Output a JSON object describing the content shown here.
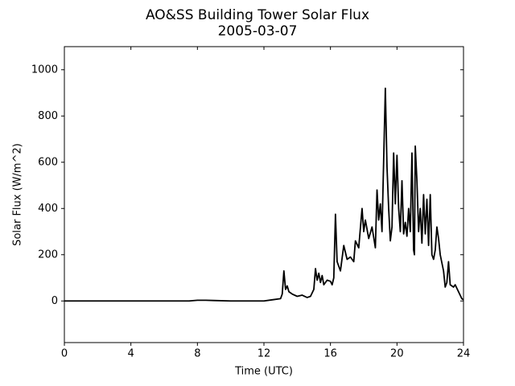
{
  "chart_data": {
    "type": "line",
    "title": "AO&SS Building Tower Solar Flux",
    "subtitle": "2005-03-07",
    "x_label": "Time (UTC)",
    "y_label": "Solar Flux (W/m^2)",
    "xlim": [
      0,
      24
    ],
    "xticks": [
      0,
      4,
      8,
      12,
      16,
      20,
      24
    ],
    "ylim": [
      -180,
      1100
    ],
    "yticks": [
      0,
      200,
      400,
      600,
      800,
      1000
    ],
    "grid": false,
    "series": [
      {
        "name": "Solar Flux",
        "color": "#000000",
        "x": [
          0,
          2,
          4,
          6,
          7.5,
          8,
          8.5,
          9,
          10,
          11,
          12,
          12.5,
          13,
          13.1,
          13.2,
          13.3,
          13.4,
          13.5,
          13.7,
          14,
          14.3,
          14.6,
          14.8,
          15,
          15.1,
          15.2,
          15.3,
          15.4,
          15.5,
          15.6,
          15.8,
          16,
          16.1,
          16.2,
          16.3,
          16.4,
          16.6,
          16.8,
          17,
          17.2,
          17.4,
          17.5,
          17.7,
          17.9,
          18,
          18.1,
          18.3,
          18.5,
          18.7,
          18.8,
          18.9,
          19,
          19.1,
          19.3,
          19.4,
          19.5,
          19.6,
          19.7,
          19.8,
          19.9,
          20,
          20.1,
          20.2,
          20.3,
          20.4,
          20.5,
          20.6,
          20.7,
          20.8,
          20.9,
          21,
          21.05,
          21.1,
          21.2,
          21.3,
          21.4,
          21.5,
          21.6,
          21.7,
          21.8,
          21.9,
          22,
          22.1,
          22.2,
          22.3,
          22.4,
          22.5,
          22.6,
          22.8,
          22.9,
          23,
          23.1,
          23.2,
          23.4,
          23.5,
          23.7,
          23.9,
          24
        ],
        "values": [
          0,
          0,
          0,
          0,
          0,
          3,
          3,
          2,
          0,
          0,
          0,
          5,
          10,
          30,
          130,
          50,
          65,
          40,
          30,
          20,
          25,
          15,
          20,
          50,
          140,
          90,
          120,
          80,
          110,
          70,
          90,
          85,
          70,
          100,
          375,
          170,
          130,
          240,
          180,
          190,
          170,
          260,
          230,
          400,
          300,
          350,
          270,
          320,
          230,
          480,
          350,
          420,
          300,
          920,
          580,
          400,
          260,
          320,
          640,
          420,
          630,
          400,
          300,
          520,
          290,
          340,
          280,
          400,
          300,
          640,
          220,
          200,
          670,
          520,
          300,
          400,
          250,
          460,
          290,
          440,
          240,
          460,
          200,
          180,
          220,
          320,
          270,
          200,
          130,
          60,
          80,
          170,
          70,
          60,
          70,
          40,
          10,
          5
        ]
      }
    ]
  }
}
